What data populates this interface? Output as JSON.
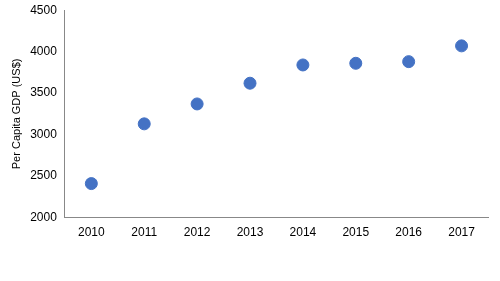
{
  "chart_data": {
    "type": "scatter",
    "y_label": "Per Capita GDP (US$)",
    "categories": [
      "2010",
      "2011",
      "2012",
      "2013",
      "2014",
      "2015",
      "2016",
      "2017"
    ],
    "values": [
      2410,
      3130,
      3370,
      3620,
      3840,
      3860,
      3880,
      4070
    ],
    "color": "#4472c4",
    "marker": "circle",
    "ylim": [
      2000,
      4500
    ],
    "yticks": [
      2000,
      2500,
      3000,
      3500,
      4000,
      4500
    ],
    "grid": false
  }
}
